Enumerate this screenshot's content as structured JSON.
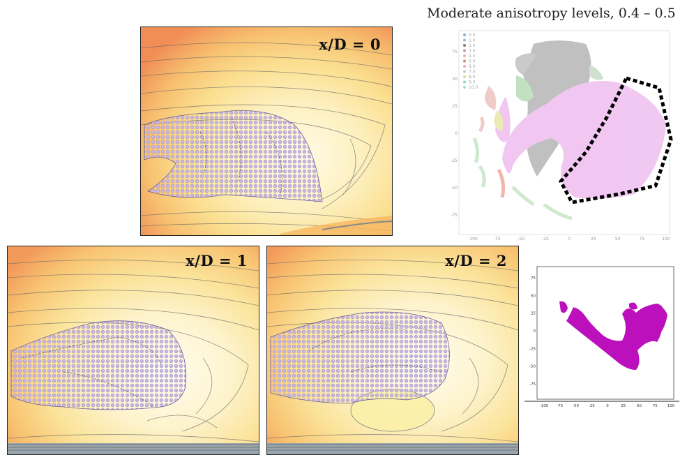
{
  "title": "Moderate anisotropy levels, 0.4 – 0.5",
  "panels": [
    {
      "label": "x/D = 0"
    },
    {
      "label": "x/D = 1"
    },
    {
      "label": "x/D = 2"
    }
  ],
  "colors": {
    "contour_warm": "#f4a05a",
    "contour_light": "#fdf6d8",
    "points": "#b9a8d8",
    "tsne_highlight": "#bb10bb",
    "dashed_polygon": "#000000"
  },
  "tsne_full": {
    "legend": [
      "0.0",
      "1.0",
      "2.0",
      "3.0",
      "4.0",
      "5.0",
      "6.0",
      "7.0",
      "8.0",
      "9.0",
      "10.0"
    ],
    "legend_colors": [
      "#9aa7d6",
      "#8fbde0",
      "#7a7a7a",
      "#b9a39a",
      "#e8b0b0",
      "#d98c6a",
      "#f2a5c5",
      "#c9c9c9",
      "#d6de8a",
      "#8fd3c2",
      "#9fe0e8"
    ],
    "x_ticks": [
      "-100",
      "-75",
      "-50",
      "-25",
      "0",
      "25",
      "50",
      "75",
      "100"
    ],
    "y_ticks": [
      "75",
      "50",
      "25",
      "0",
      "-25",
      "-50",
      "-75"
    ]
  },
  "tsne_subset": {
    "x_ticks": [
      "-100",
      "-75",
      "-50",
      "-25",
      "0",
      "25",
      "50",
      "75",
      "100"
    ],
    "y_ticks": [
      "75",
      "50",
      "25",
      "0",
      "-25",
      "-50",
      "-75"
    ]
  }
}
